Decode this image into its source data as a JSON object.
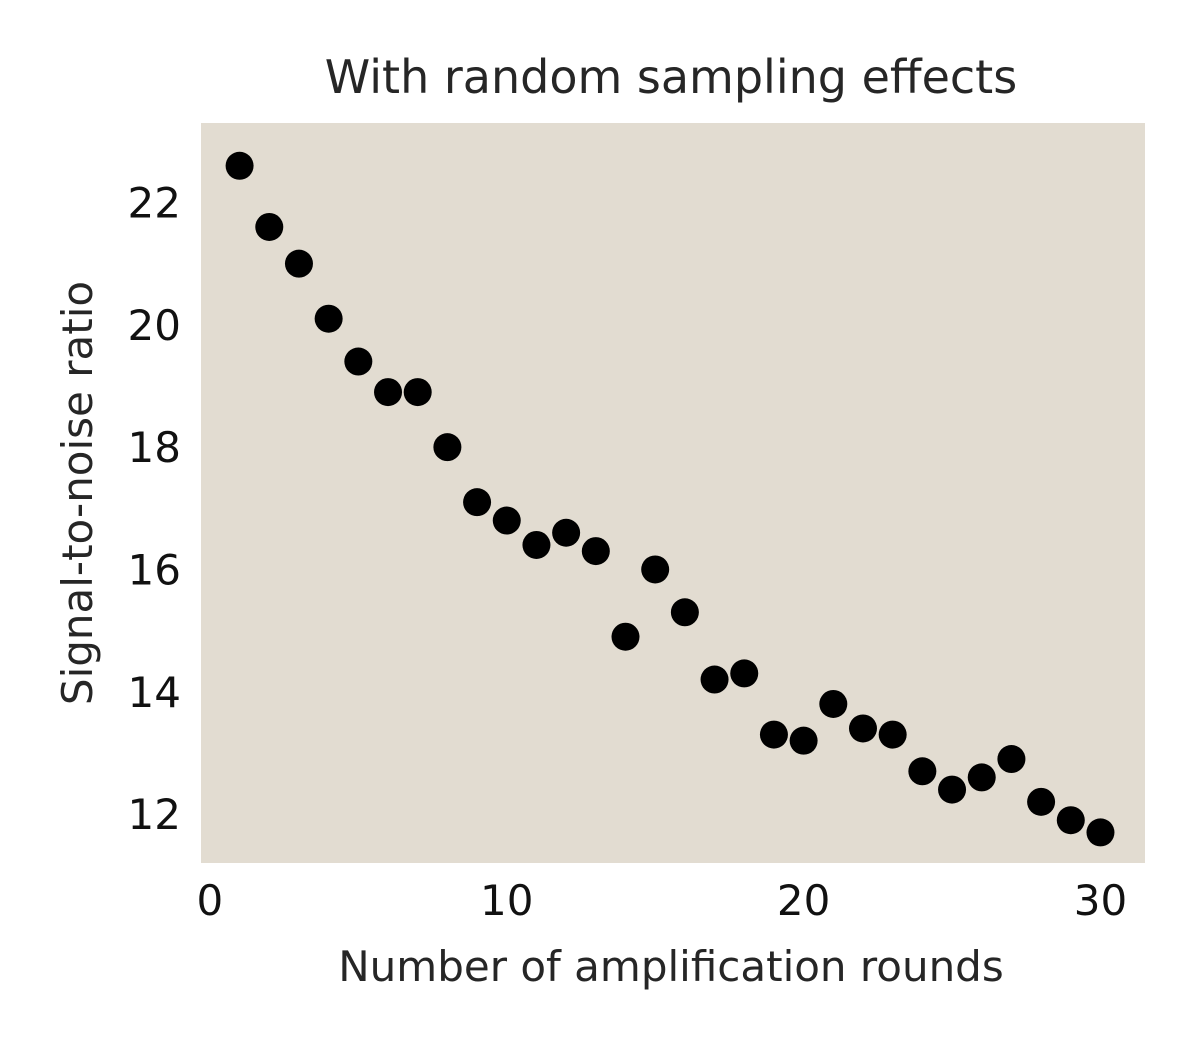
{
  "chart_data": {
    "type": "scatter",
    "title": "With random sampling effects",
    "xlabel": "Number of amplification rounds",
    "ylabel": "Signal-to-noise ratio",
    "xlim": [
      -0.3,
      31.5
    ],
    "ylim": [
      11.2,
      23.3
    ],
    "xticks": [
      0,
      10,
      20,
      30
    ],
    "yticks": [
      12,
      14,
      16,
      18,
      20,
      22
    ],
    "xtick_labels": [
      "0",
      "10",
      "20",
      "30"
    ],
    "ytick_labels": [
      "12",
      "14",
      "16",
      "18",
      "20",
      "22"
    ],
    "grid": false,
    "legend": "none",
    "colors": {
      "plot_background": "#e2dcd1",
      "marker": "#000000",
      "title_text": "#262626"
    },
    "series": [
      {
        "x": [
          1,
          2,
          3,
          4,
          5,
          6,
          7,
          8,
          9,
          10,
          11,
          12,
          13,
          14,
          15,
          16,
          17,
          18,
          19,
          20,
          21,
          22,
          23,
          24,
          25,
          26,
          27,
          28,
          29,
          30
        ],
        "y": [
          22.6,
          21.6,
          21.0,
          20.1,
          19.4,
          18.9,
          18.9,
          18.0,
          17.1,
          16.8,
          16.4,
          16.6,
          16.3,
          14.9,
          16.0,
          15.3,
          14.2,
          14.3,
          13.3,
          13.2,
          13.8,
          13.4,
          13.3,
          12.7,
          12.4,
          12.6,
          12.9,
          12.2,
          11.9,
          11.7
        ]
      }
    ]
  }
}
